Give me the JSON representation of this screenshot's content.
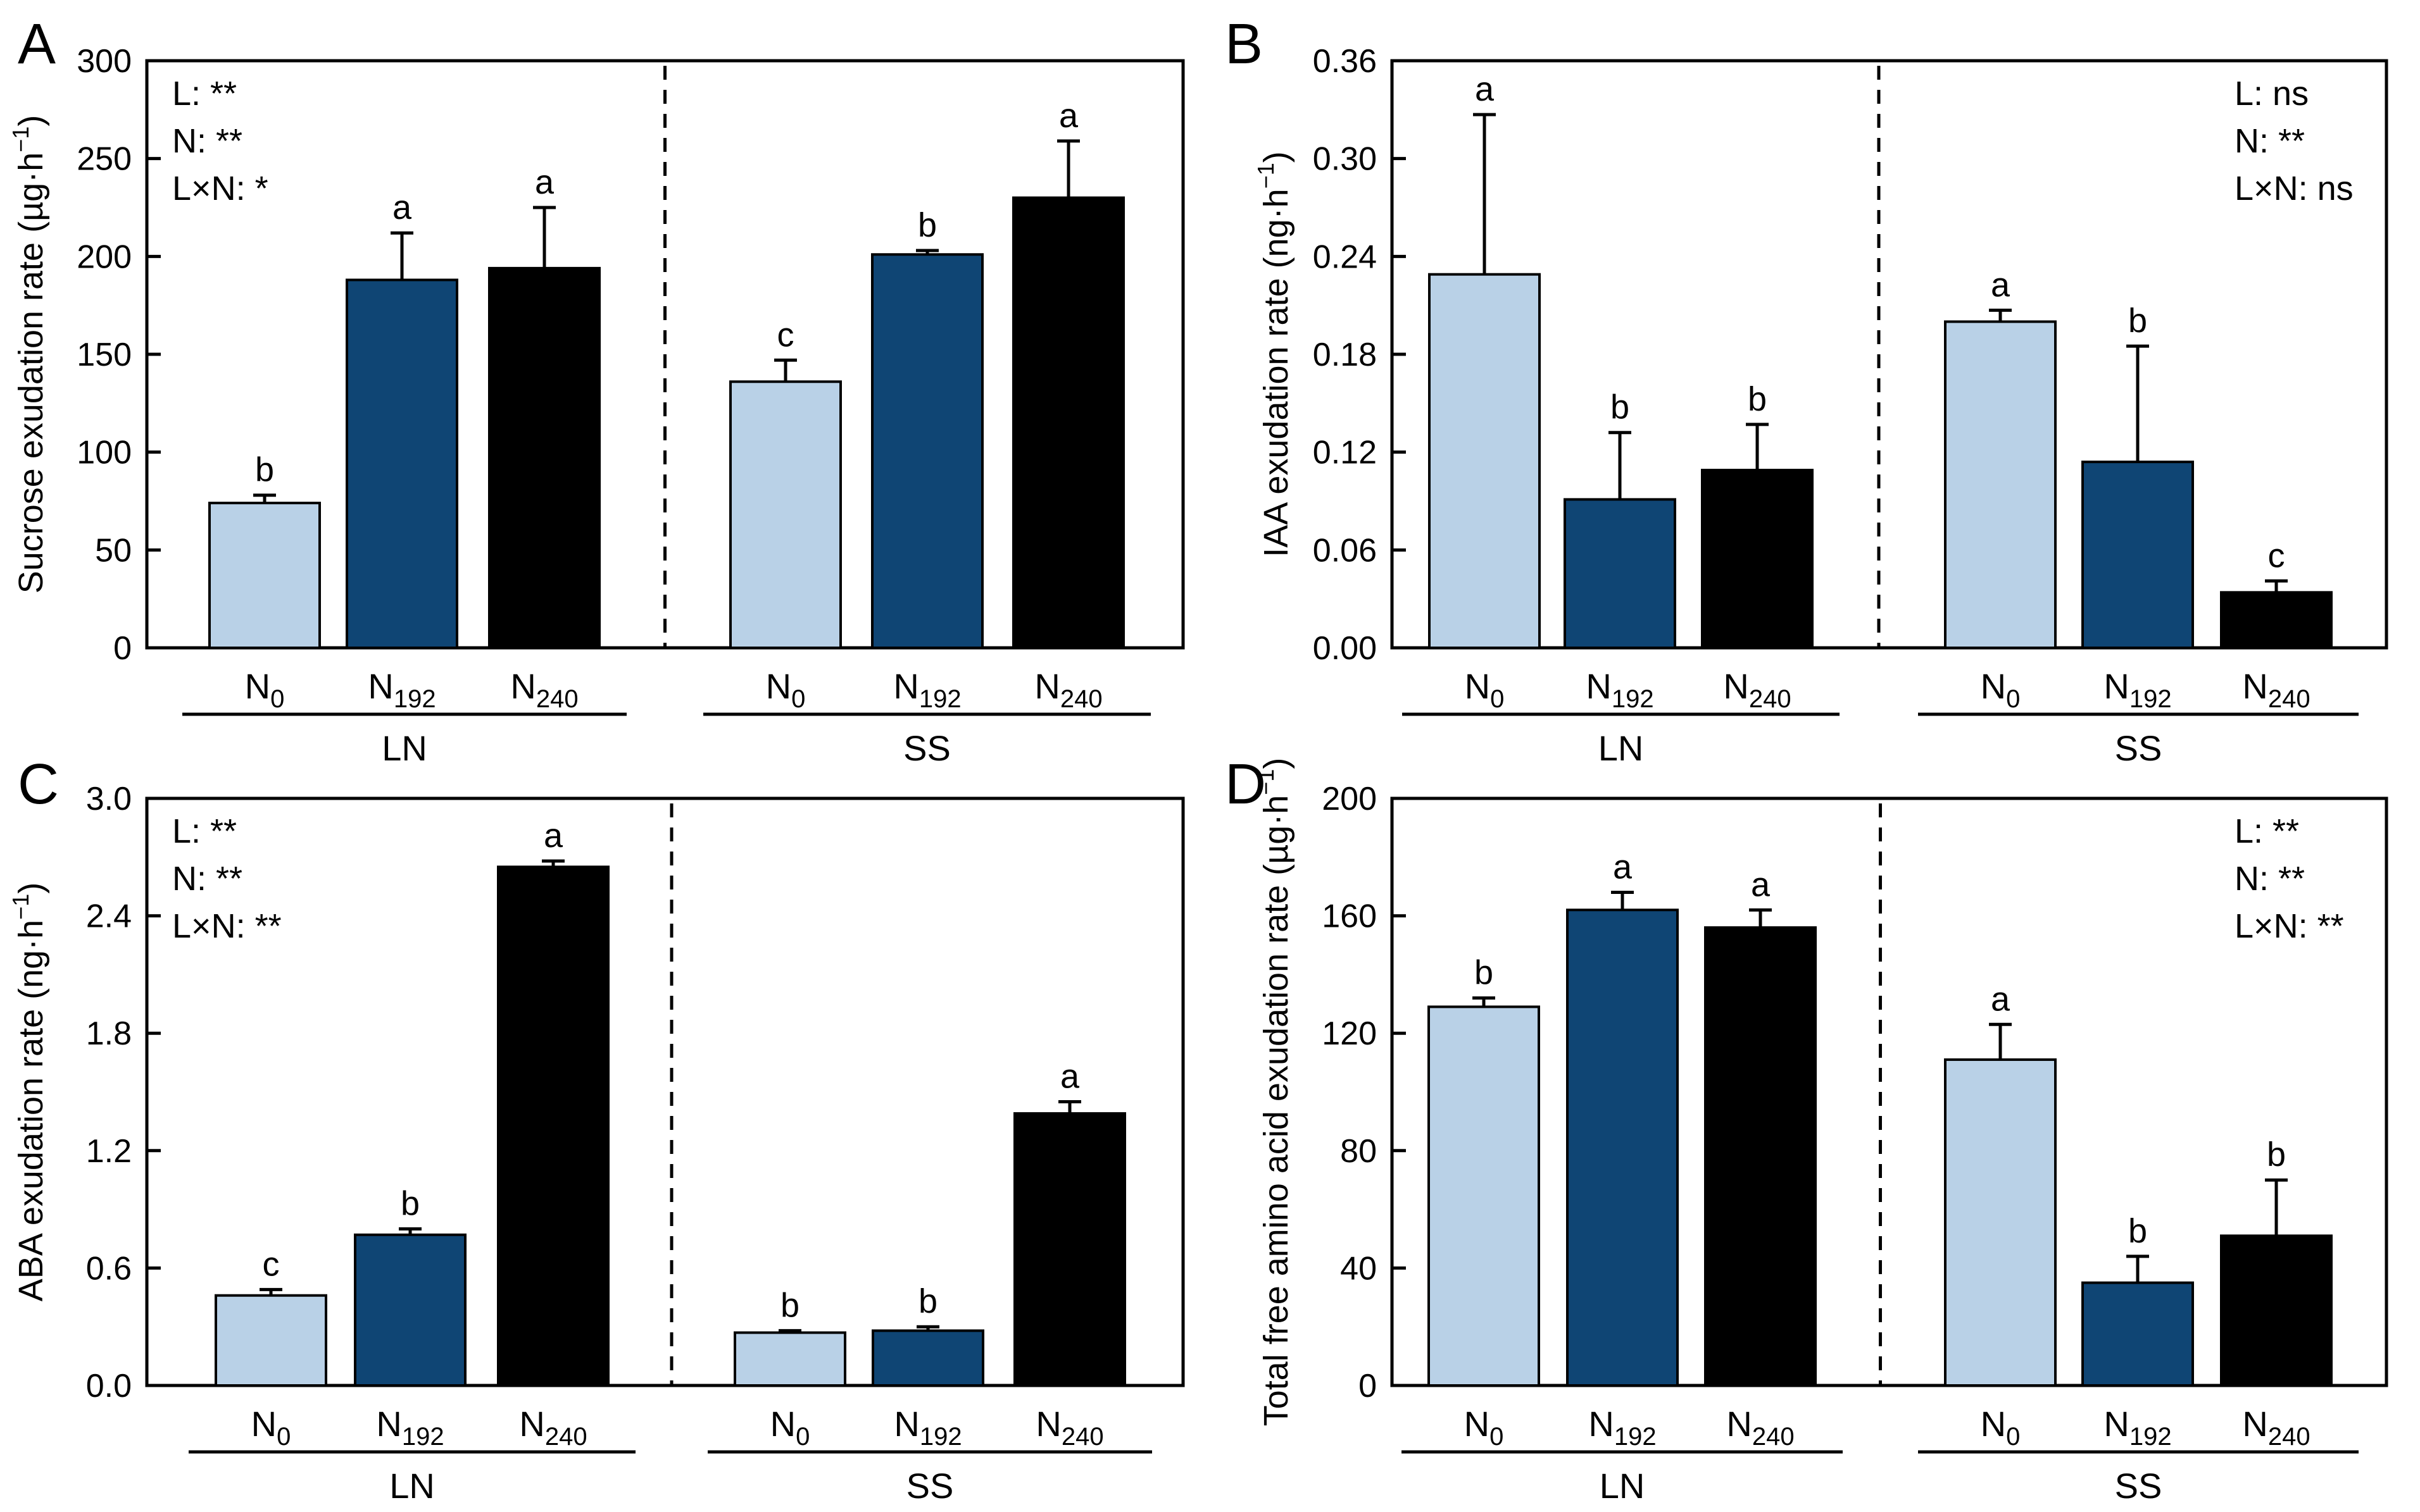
{
  "colors": {
    "N0": "#b9d1e7",
    "N192": "#0f4574",
    "N240": "#000000"
  },
  "groups": [
    "LN",
    "SS"
  ],
  "treatments": [
    {
      "base": "N",
      "sub": "0"
    },
    {
      "base": "N",
      "sub": "192"
    },
    {
      "base": "N",
      "sub": "240"
    }
  ],
  "chart_data": [
    {
      "panel": "A",
      "type": "bar",
      "ylabel_main": "Sucrose exudation rate (µg·h",
      "ylabel_sup": "−1",
      "ylabel_end": ")",
      "ylim": [
        0,
        300
      ],
      "yticks": [
        0,
        50,
        100,
        150,
        200,
        250,
        300
      ],
      "tick_decimals": 0,
      "stats_position": "top-left",
      "stats": [
        "L: **",
        "N: **",
        "L×N: *"
      ],
      "series": [
        {
          "group": "LN",
          "values": [
            74,
            188,
            194
          ],
          "errors": [
            4,
            24,
            31
          ],
          "letters": [
            "b",
            "a",
            "a"
          ]
        },
        {
          "group": "SS",
          "values": [
            136,
            201,
            230
          ],
          "errors": [
            11,
            2,
            29
          ],
          "letters": [
            "c",
            "b",
            "a"
          ]
        }
      ]
    },
    {
      "panel": "B",
      "type": "bar",
      "ylabel_main": "IAA exudation rate (ng·h",
      "ylabel_sup": "−1",
      "ylabel_end": ")",
      "ylim": [
        0,
        0.36
      ],
      "yticks": [
        0,
        0.06,
        0.12,
        0.18,
        0.24,
        0.3,
        0.36
      ],
      "tick_decimals": 2,
      "stats_position": "top-right",
      "stats": [
        "L: ns",
        "N: **",
        "L×N: ns"
      ],
      "series": [
        {
          "group": "LN",
          "values": [
            0.229,
            0.091,
            0.109
          ],
          "errors": [
            0.098,
            0.041,
            0.028
          ],
          "letters": [
            "a",
            "b",
            "b"
          ]
        },
        {
          "group": "SS",
          "values": [
            0.2,
            0.114,
            0.034
          ],
          "errors": [
            0.007,
            0.071,
            0.007
          ],
          "letters": [
            "a",
            "b",
            "c"
          ]
        }
      ]
    },
    {
      "panel": "C",
      "type": "bar",
      "ylabel_main": "ABA exudation rate (ng·h",
      "ylabel_sup": "−1",
      "ylabel_end": ")",
      "ylim": [
        0,
        3.0
      ],
      "yticks": [
        0,
        0.6,
        1.2,
        1.8,
        2.4,
        3.0
      ],
      "tick_decimals": 1,
      "stats_position": "top-left",
      "stats": [
        "L: **",
        "N: **",
        "L×N: **"
      ],
      "series": [
        {
          "group": "LN",
          "values": [
            0.46,
            0.77,
            2.65
          ],
          "errors": [
            0.03,
            0.03,
            0.03
          ],
          "letters": [
            "c",
            "b",
            "a"
          ]
        },
        {
          "group": "SS",
          "values": [
            0.27,
            0.28,
            1.39
          ],
          "errors": [
            0.01,
            0.02,
            0.06
          ],
          "letters": [
            "b",
            "b",
            "a"
          ]
        }
      ]
    },
    {
      "panel": "D",
      "type": "bar",
      "ylabel_main": "Total free amino acid exudation rate (µg·h",
      "ylabel_sup": "−1",
      "ylabel_end": ")",
      "ylim": [
        0,
        200
      ],
      "yticks": [
        0,
        40,
        80,
        120,
        160,
        200
      ],
      "tick_decimals": 0,
      "stats_position": "top-right",
      "stats": [
        "L: **",
        "N: **",
        "L×N: **"
      ],
      "series": [
        {
          "group": "LN",
          "values": [
            129,
            162,
            156
          ],
          "errors": [
            3,
            6,
            6
          ],
          "letters": [
            "b",
            "a",
            "a"
          ]
        },
        {
          "group": "SS",
          "values": [
            111,
            35,
            51
          ],
          "errors": [
            12,
            9,
            19
          ],
          "letters": [
            "a",
            "b",
            "b"
          ]
        }
      ]
    }
  ]
}
